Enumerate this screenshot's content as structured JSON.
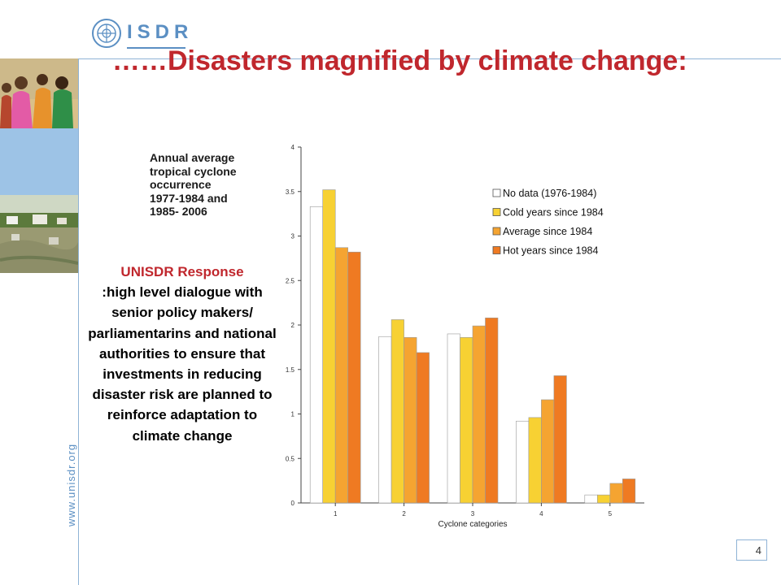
{
  "header": {
    "logo_text": "ISDR",
    "title": "……Disasters magnified by climate change:"
  },
  "sidebar": {
    "website": "www.unisdr.org"
  },
  "caption": {
    "lines": [
      "Annual average",
      "tropical cyclone",
      "occurrence",
      "1977-1984 and",
      "1985- 2006"
    ]
  },
  "response": {
    "title": "UNISDR Response",
    "body": ":high level dialogue with senior policy makers/ parliamentarins and national authorities to ensure that investments in reducing disaster risk are planned to reinforce adaptation to climate change"
  },
  "page_number": "4",
  "chart_data": {
    "type": "bar",
    "categories": [
      "1",
      "2",
      "3",
      "4",
      "5"
    ],
    "xlabel": "Cyclone categories",
    "ylabel": "",
    "ylim": [
      0,
      4
    ],
    "yticks": [
      "0",
      "0.5",
      "1",
      "1.5",
      "2",
      "2.5",
      "3",
      "3.5",
      "4"
    ],
    "ytick_values": [
      0,
      0.5,
      1,
      1.5,
      2,
      2.5,
      3,
      3.5,
      4
    ],
    "grid": false,
    "legend_position": "top-right",
    "series": [
      {
        "name": "No data (1976-1984)",
        "color": "#ffffff",
        "values": [
          3.33,
          1.87,
          1.9,
          0.92,
          0.09
        ]
      },
      {
        "name": "Cold years since 1984",
        "color": "#f7d133",
        "values": [
          3.52,
          2.06,
          1.86,
          0.96,
          0.09
        ]
      },
      {
        "name": "Average since 1984",
        "color": "#f5a431",
        "values": [
          2.87,
          1.86,
          1.99,
          1.16,
          0.22
        ]
      },
      {
        "name": "Hot years since 1984",
        "color": "#ef7a22",
        "values": [
          2.82,
          1.69,
          2.08,
          1.43,
          0.27
        ]
      }
    ]
  }
}
